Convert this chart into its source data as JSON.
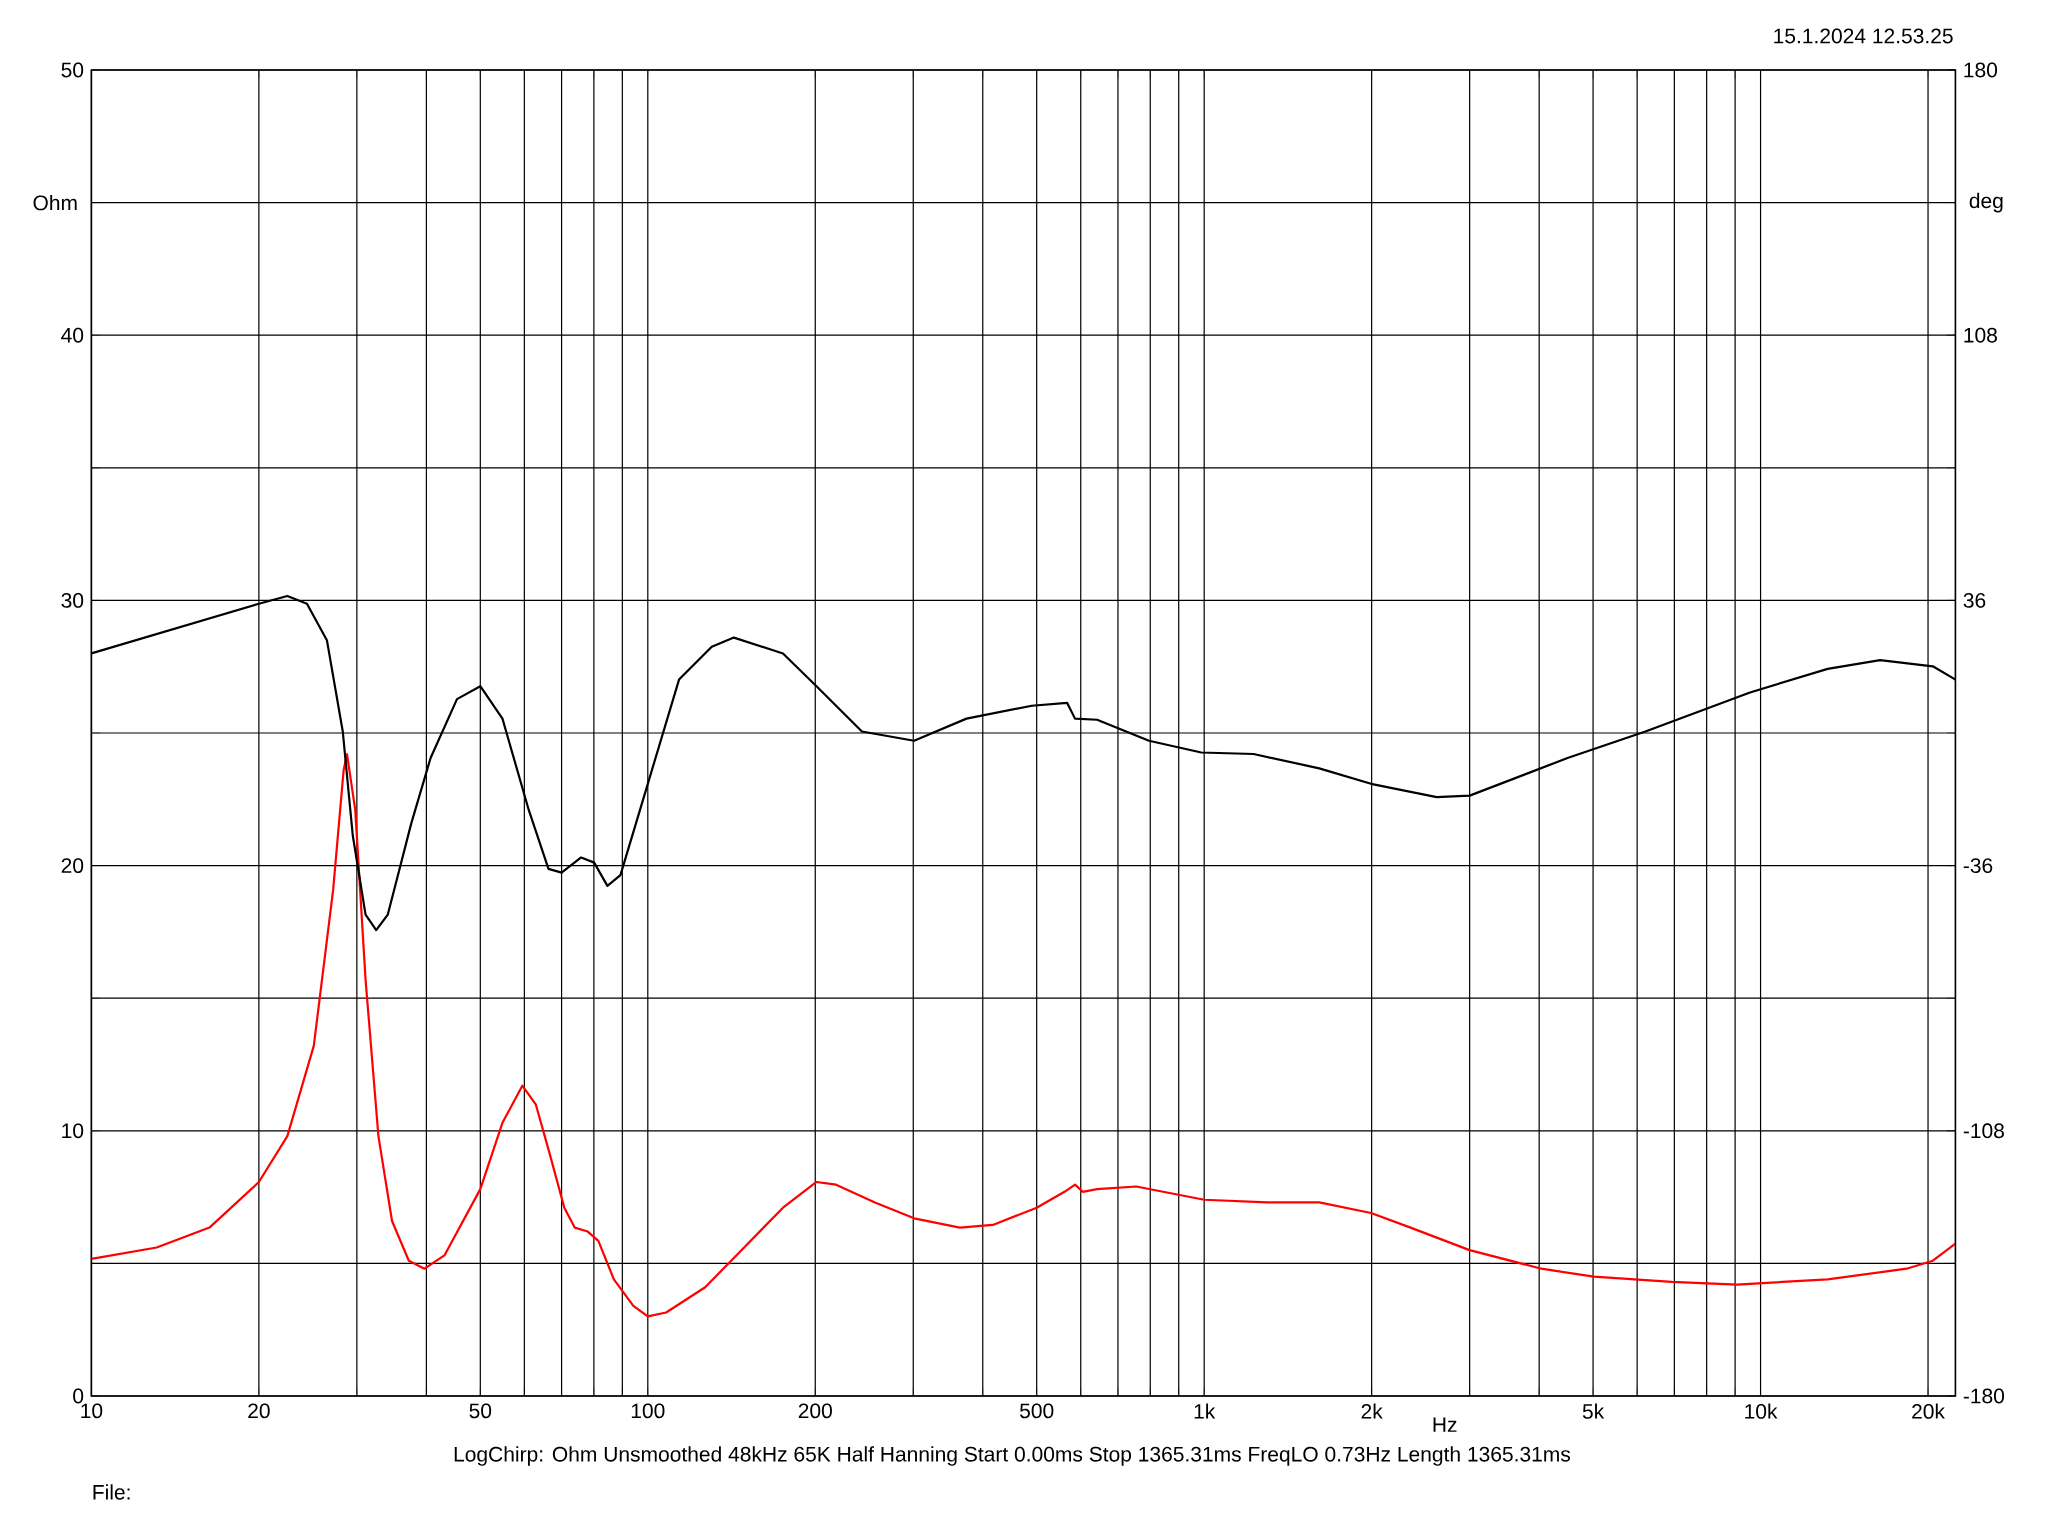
{
  "chart_data": {
    "type": "line",
    "xlabel": "Hz",
    "ylabel": "Ohm",
    "y2label": "deg",
    "log": "x",
    "grid": true,
    "xlim": [
      10,
      22400
    ],
    "ylim": [
      0,
      50
    ],
    "y2lim": [
      -180,
      180
    ],
    "xticks": [
      10,
      {
        "value": 20,
        "label": "20"
      },
      {
        "value": 30,
        "label": null
      },
      {
        "value": 40,
        "label": null
      },
      50,
      {
        "value": 60,
        "label": null
      },
      {
        "value": 70,
        "label": null
      },
      {
        "value": 80,
        "label": null
      },
      {
        "value": 90,
        "label": null
      },
      100,
      200,
      {
        "value": 300,
        "label": null
      },
      {
        "value": 400,
        "label": null
      },
      500,
      {
        "value": 600,
        "label": null
      },
      {
        "value": 700,
        "label": null
      },
      {
        "value": 800,
        "label": null
      },
      {
        "value": 900,
        "label": null
      },
      {
        "value": 1000,
        "label": "1k"
      },
      {
        "value": 2000,
        "label": "2k"
      },
      {
        "value": 3000,
        "label": null
      },
      {
        "value": 4000,
        "label": null
      },
      {
        "value": 5000,
        "label": "5k"
      },
      {
        "value": 6000,
        "label": null
      },
      {
        "value": 7000,
        "label": null
      },
      {
        "value": 8000,
        "label": null
      },
      {
        "value": 9000,
        "label": null
      },
      {
        "value": 10000,
        "label": "10k"
      },
      {
        "value": 20000,
        "label": "20k"
      }
    ],
    "yticks": [
      0,
      {
        "value": 5,
        "label": null
      },
      10,
      {
        "value": 15,
        "label": null
      },
      20,
      {
        "value": 25,
        "label": null
      },
      30,
      {
        "value": 35,
        "label": null
      },
      40,
      {
        "value": 45,
        "label": null
      },
      50
    ],
    "y2ticks": [
      -180,
      -108,
      -36,
      36,
      108,
      180
    ],
    "series": [
      {
        "color": "#ff0000",
        "x": [
          10,
          13.1,
          16.3,
          20,
          22.5,
          25.1,
          27.2,
          28.4,
          28.8,
          29.8,
          31.1,
          32.8,
          34.7,
          37.2,
          39.7,
          43.1,
          50,
          54.8,
          59.5,
          62.9,
          66.3,
          70.8,
          73.9,
          78,
          81.5,
          86.9,
          94.2,
          100,
          107.9,
          126.8,
          149,
          175,
          201,
          218,
          256,
          301,
          364,
          417,
          500,
          561,
          586,
          605,
          642,
          755,
          1000,
          1297,
          1610,
          1995,
          2349,
          2999,
          4036,
          5012,
          6925,
          9078,
          13200,
          18300,
          20400,
          22400
        ],
        "values": [
          5.17,
          5.6,
          6.35,
          8.07,
          9.8,
          13.2,
          19.1,
          23.6,
          24.2,
          22.1,
          15.7,
          9.8,
          6.6,
          5.1,
          4.8,
          5.3,
          7.8,
          10.3,
          11.7,
          11.0,
          9.3,
          7.1,
          6.35,
          6.2,
          5.85,
          4.4,
          3.4,
          3.0,
          3.15,
          4.1,
          5.6,
          7.1,
          8.07,
          7.97,
          7.3,
          6.7,
          6.35,
          6.45,
          7.1,
          7.7,
          7.97,
          7.7,
          7.8,
          7.9,
          7.4,
          7.3,
          7.3,
          6.9,
          6.35,
          5.5,
          4.8,
          4.5,
          4.3,
          4.2,
          4.4,
          4.8,
          5.1,
          5.75
        ]
      },
      {
        "color": "#000000",
        "axis": "y2",
        "x": [
          10,
          20,
          22.5,
          24.4,
          26.5,
          28.3,
          29.5,
          31.1,
          32.5,
          34.1,
          37.6,
          40.7,
          45.4,
          50,
          54.8,
          61.1,
          66.3,
          70,
          75.9,
          80.1,
          84.6,
          89.3,
          100,
          113.8,
          130.3,
          142.8,
          175,
          201,
          242.6,
          301,
          374,
          490,
          567,
          586,
          642,
          796,
          988,
          1227,
          1610,
          1995,
          2618,
          3000,
          4498,
          6209,
          9572,
          13200,
          16400,
          20400,
          22400
        ],
        "values": [
          21.6,
          35.1,
          37.2,
          35.1,
          25.2,
          0.4,
          -27.9,
          -49.3,
          -53.5,
          -49.3,
          -24.4,
          -6.8,
          9.2,
          12.7,
          3.9,
          -20.9,
          -36.9,
          -37.9,
          -33.8,
          -35.2,
          -41.5,
          -38.6,
          -13.8,
          14.5,
          23.4,
          25.9,
          21.6,
          12.7,
          0.4,
          -2.1,
          3.9,
          7.4,
          8.2,
          3.9,
          3.6,
          -2.1,
          -5.3,
          -5.7,
          -9.6,
          -13.8,
          -17.4,
          -17.0,
          -6.8,
          0.4,
          11.0,
          17.4,
          19.8,
          18.1,
          14.5
        ]
      }
    ],
    "annotations": [
      "15.1.2024 12.53.25",
      "LogChirp:  Ohm   Unsmoothed   48kHz   65K   Half Hanning   Start 0.00ms   Stop 1365.31ms   FreqLO 0.73Hz   Length 1365.31ms",
      "File:"
    ]
  }
}
